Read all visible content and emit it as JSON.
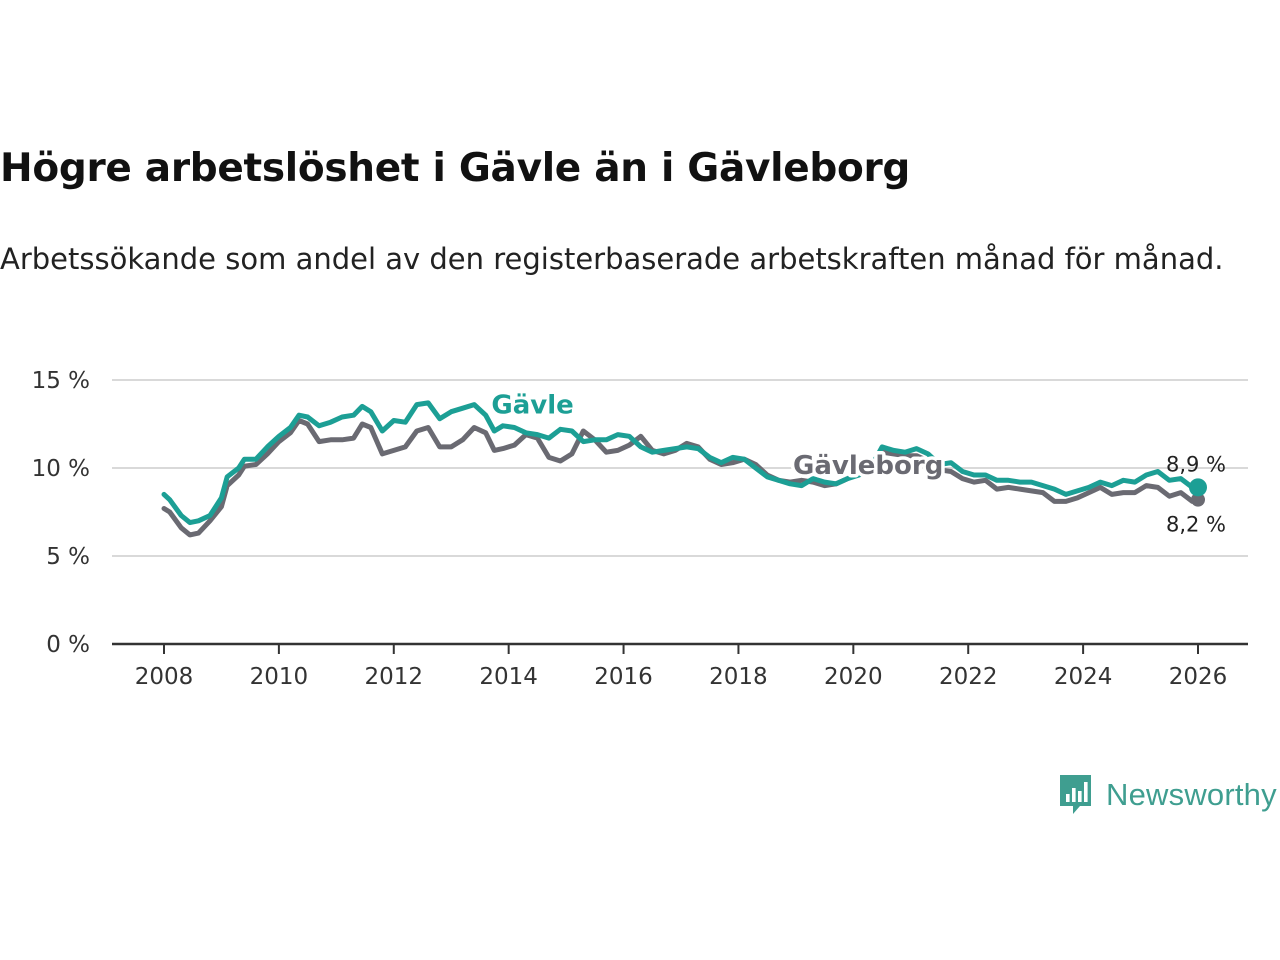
{
  "title": "Högre arbetslöshet i Gävle än i Gävleborg",
  "subtitle": "Arbetssökande som andel av den registerbaserade arbetskraften månad för månad.",
  "brand": {
    "name": "Newsworthy",
    "color": "#3f9e90",
    "icon": "bar-chart-badge-icon"
  },
  "colors": {
    "gavle": "#1c9f95",
    "gavleborg": "#6a6a72",
    "grid": "#d9d9d9",
    "axis": "#333333"
  },
  "chart_data": {
    "type": "line",
    "title": "Högre arbetslöshet i Gävle än i Gävleborg",
    "xlabel": "",
    "ylabel": "",
    "xlim": [
      2008,
      2026.3
    ],
    "ylim": [
      0,
      15
    ],
    "grid": true,
    "x_ticks": [
      2008,
      2010,
      2012,
      2014,
      2016,
      2018,
      2020,
      2022,
      2024,
      2026
    ],
    "x_tick_labels": [
      "2008",
      "2010",
      "2012",
      "2014",
      "2016",
      "2018",
      "2020",
      "2022",
      "2024",
      "2026"
    ],
    "y_ticks": [
      0,
      5,
      10,
      15
    ],
    "y_tick_labels": [
      "0 %",
      "5 %",
      "10 %",
      "15 %"
    ],
    "series": [
      {
        "name": "Gävle",
        "label": "Gävle",
        "end_label": "8,9 %",
        "points": [
          [
            2008.0,
            8.5
          ],
          [
            2008.1,
            8.2
          ],
          [
            2008.3,
            7.3
          ],
          [
            2008.45,
            6.9
          ],
          [
            2008.6,
            7.0
          ],
          [
            2008.8,
            7.3
          ],
          [
            2009.0,
            8.3
          ],
          [
            2009.1,
            9.5
          ],
          [
            2009.3,
            10.0
          ],
          [
            2009.4,
            10.5
          ],
          [
            2009.6,
            10.5
          ],
          [
            2009.8,
            11.2
          ],
          [
            2010.0,
            11.8
          ],
          [
            2010.2,
            12.3
          ],
          [
            2010.35,
            13.0
          ],
          [
            2010.5,
            12.9
          ],
          [
            2010.7,
            12.4
          ],
          [
            2010.9,
            12.6
          ],
          [
            2011.1,
            12.9
          ],
          [
            2011.3,
            13.0
          ],
          [
            2011.45,
            13.5
          ],
          [
            2011.6,
            13.2
          ],
          [
            2011.8,
            12.1
          ],
          [
            2012.0,
            12.7
          ],
          [
            2012.2,
            12.6
          ],
          [
            2012.4,
            13.6
          ],
          [
            2012.6,
            13.7
          ],
          [
            2012.8,
            12.8
          ],
          [
            2013.0,
            13.2
          ],
          [
            2013.2,
            13.4
          ],
          [
            2013.4,
            13.6
          ],
          [
            2013.6,
            13.0
          ],
          [
            2013.75,
            12.1
          ],
          [
            2013.9,
            12.4
          ],
          [
            2014.1,
            12.3
          ],
          [
            2014.3,
            12.0
          ],
          [
            2014.5,
            11.9
          ],
          [
            2014.7,
            11.7
          ],
          [
            2014.9,
            12.2
          ],
          [
            2015.1,
            12.1
          ],
          [
            2015.3,
            11.5
          ],
          [
            2015.5,
            11.6
          ],
          [
            2015.7,
            11.6
          ],
          [
            2015.9,
            11.9
          ],
          [
            2016.1,
            11.8
          ],
          [
            2016.3,
            11.2
          ],
          [
            2016.5,
            10.9
          ],
          [
            2016.7,
            11.0
          ],
          [
            2016.9,
            11.1
          ],
          [
            2017.1,
            11.2
          ],
          [
            2017.3,
            11.1
          ],
          [
            2017.5,
            10.6
          ],
          [
            2017.7,
            10.3
          ],
          [
            2017.9,
            10.6
          ],
          [
            2018.1,
            10.5
          ],
          [
            2018.3,
            10.0
          ],
          [
            2018.5,
            9.5
          ],
          [
            2018.7,
            9.3
          ],
          [
            2018.9,
            9.1
          ],
          [
            2019.1,
            9.0
          ],
          [
            2019.3,
            9.4
          ],
          [
            2019.5,
            9.2
          ],
          [
            2019.7,
            9.1
          ],
          [
            2019.9,
            9.4
          ],
          [
            2020.1,
            9.6
          ],
          [
            2020.3,
            10.0
          ],
          [
            2020.5,
            11.2
          ],
          [
            2020.7,
            11.0
          ],
          [
            2020.9,
            10.9
          ],
          [
            2021.1,
            11.1
          ],
          [
            2021.3,
            10.8
          ],
          [
            2021.5,
            10.2
          ],
          [
            2021.7,
            10.3
          ],
          [
            2021.9,
            9.8
          ],
          [
            2022.1,
            9.6
          ],
          [
            2022.3,
            9.6
          ],
          [
            2022.5,
            9.3
          ],
          [
            2022.7,
            9.3
          ],
          [
            2022.9,
            9.2
          ],
          [
            2023.1,
            9.2
          ],
          [
            2023.3,
            9.0
          ],
          [
            2023.5,
            8.8
          ],
          [
            2023.7,
            8.5
          ],
          [
            2023.9,
            8.7
          ],
          [
            2024.1,
            8.9
          ],
          [
            2024.3,
            9.2
          ],
          [
            2024.5,
            9.0
          ],
          [
            2024.7,
            9.3
          ],
          [
            2024.9,
            9.2
          ],
          [
            2025.1,
            9.6
          ],
          [
            2025.3,
            9.8
          ],
          [
            2025.5,
            9.3
          ],
          [
            2025.7,
            9.4
          ],
          [
            2025.9,
            8.9
          ],
          [
            2026.0,
            8.9
          ]
        ]
      },
      {
        "name": "Gävleborg",
        "label": "Gävleborg",
        "end_label": "8,2 %",
        "points": [
          [
            2008.0,
            7.7
          ],
          [
            2008.1,
            7.5
          ],
          [
            2008.3,
            6.6
          ],
          [
            2008.45,
            6.2
          ],
          [
            2008.6,
            6.3
          ],
          [
            2008.8,
            7.0
          ],
          [
            2009.0,
            7.8
          ],
          [
            2009.1,
            9.0
          ],
          [
            2009.3,
            9.6
          ],
          [
            2009.4,
            10.1
          ],
          [
            2009.6,
            10.2
          ],
          [
            2009.8,
            10.8
          ],
          [
            2010.0,
            11.5
          ],
          [
            2010.2,
            12.0
          ],
          [
            2010.35,
            12.7
          ],
          [
            2010.5,
            12.5
          ],
          [
            2010.7,
            11.5
          ],
          [
            2010.9,
            11.6
          ],
          [
            2011.1,
            11.6
          ],
          [
            2011.3,
            11.7
          ],
          [
            2011.45,
            12.5
          ],
          [
            2011.6,
            12.3
          ],
          [
            2011.8,
            10.8
          ],
          [
            2012.0,
            11.0
          ],
          [
            2012.2,
            11.2
          ],
          [
            2012.4,
            12.1
          ],
          [
            2012.6,
            12.3
          ],
          [
            2012.8,
            11.2
          ],
          [
            2013.0,
            11.2
          ],
          [
            2013.2,
            11.6
          ],
          [
            2013.4,
            12.3
          ],
          [
            2013.6,
            12.0
          ],
          [
            2013.75,
            11.0
          ],
          [
            2013.9,
            11.1
          ],
          [
            2014.1,
            11.3
          ],
          [
            2014.3,
            11.9
          ],
          [
            2014.5,
            11.7
          ],
          [
            2014.7,
            10.6
          ],
          [
            2014.9,
            10.4
          ],
          [
            2015.1,
            10.8
          ],
          [
            2015.3,
            12.1
          ],
          [
            2015.5,
            11.6
          ],
          [
            2015.7,
            10.9
          ],
          [
            2015.9,
            11.0
          ],
          [
            2016.1,
            11.3
          ],
          [
            2016.3,
            11.8
          ],
          [
            2016.5,
            11.0
          ],
          [
            2016.7,
            10.8
          ],
          [
            2016.9,
            11.0
          ],
          [
            2017.1,
            11.4
          ],
          [
            2017.3,
            11.2
          ],
          [
            2017.5,
            10.5
          ],
          [
            2017.7,
            10.2
          ],
          [
            2017.9,
            10.3
          ],
          [
            2018.1,
            10.5
          ],
          [
            2018.3,
            10.2
          ],
          [
            2018.5,
            9.6
          ],
          [
            2018.7,
            9.3
          ],
          [
            2018.9,
            9.2
          ],
          [
            2019.1,
            9.3
          ],
          [
            2019.3,
            9.2
          ],
          [
            2019.5,
            9.0
          ],
          [
            2019.7,
            9.1
          ],
          [
            2019.9,
            9.4
          ],
          [
            2020.1,
            9.7
          ],
          [
            2020.3,
            10.0
          ],
          [
            2020.5,
            10.9
          ],
          [
            2020.7,
            10.8
          ],
          [
            2020.9,
            10.7
          ],
          [
            2021.1,
            10.7
          ],
          [
            2021.3,
            10.4
          ],
          [
            2021.5,
            9.9
          ],
          [
            2021.7,
            9.8
          ],
          [
            2021.9,
            9.4
          ],
          [
            2022.1,
            9.2
          ],
          [
            2022.3,
            9.3
          ],
          [
            2022.5,
            8.8
          ],
          [
            2022.7,
            8.9
          ],
          [
            2022.9,
            8.8
          ],
          [
            2023.1,
            8.7
          ],
          [
            2023.3,
            8.6
          ],
          [
            2023.5,
            8.1
          ],
          [
            2023.7,
            8.1
          ],
          [
            2023.9,
            8.3
          ],
          [
            2024.1,
            8.6
          ],
          [
            2024.3,
            8.9
          ],
          [
            2024.5,
            8.5
          ],
          [
            2024.7,
            8.6
          ],
          [
            2024.9,
            8.6
          ],
          [
            2025.1,
            9.0
          ],
          [
            2025.3,
            8.9
          ],
          [
            2025.5,
            8.4
          ],
          [
            2025.7,
            8.6
          ],
          [
            2025.9,
            8.1
          ],
          [
            2026.0,
            8.2
          ]
        ]
      }
    ]
  }
}
